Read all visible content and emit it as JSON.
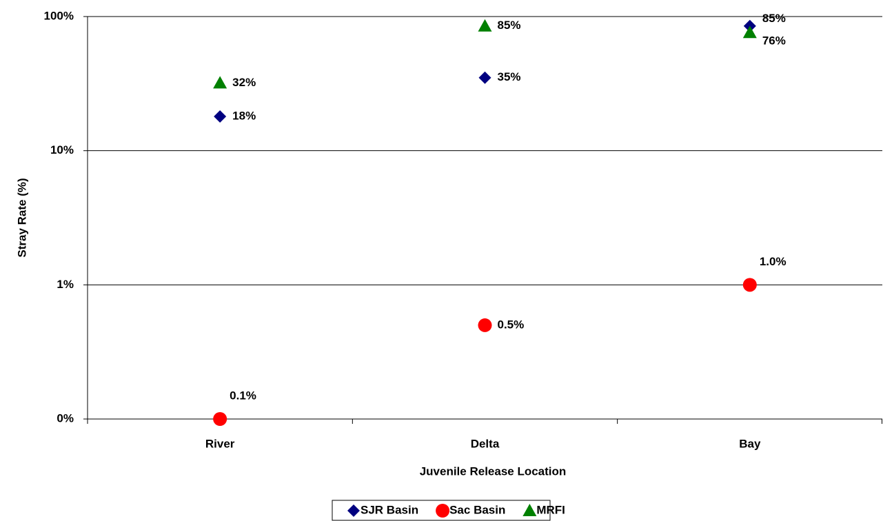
{
  "chart_data": {
    "type": "scatter",
    "y_label": "Stray Rate (%)",
    "x_label": "Juvenile Release Location",
    "categories": [
      "River",
      "Delta",
      "Bay"
    ],
    "y_scale": "log",
    "ylim": [
      0.1,
      100
    ],
    "yticks": [
      {
        "value": 0.1,
        "label": "0%"
      },
      {
        "value": 1,
        "label": "1%"
      },
      {
        "value": 10,
        "label": "10%"
      },
      {
        "value": 100,
        "label": "100%"
      }
    ],
    "grid": true,
    "legend": "bottom",
    "series": [
      {
        "name": "SJR Basin",
        "color": "#000080",
        "marker": "diamond",
        "values": [
          18,
          35,
          85
        ],
        "value_labels": [
          "18%",
          "35%",
          "85%"
        ]
      },
      {
        "name": "Sac Basin",
        "color": "#ff0000",
        "marker": "circle",
        "values": [
          0.1,
          0.5,
          1.0
        ],
        "value_labels": [
          "0.1%",
          "0.5%",
          "1.0%"
        ]
      },
      {
        "name": "MRFI",
        "color": "#008000",
        "marker": "triangle",
        "values": [
          32,
          85,
          76
        ],
        "value_labels": [
          "32%",
          "85%",
          "76%"
        ]
      }
    ]
  }
}
